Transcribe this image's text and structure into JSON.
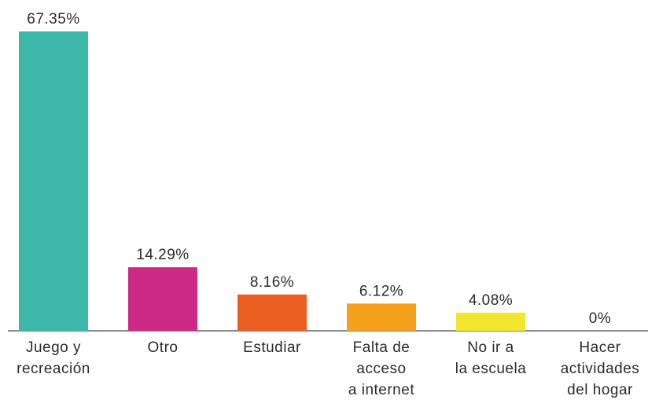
{
  "chart_data": {
    "type": "bar",
    "categories": [
      [
        "Juego y",
        "recreación"
      ],
      [
        "Otro"
      ],
      [
        "Estudiar"
      ],
      [
        "Falta de",
        "acceso",
        "a internet"
      ],
      [
        "No ir a",
        "la escuela"
      ],
      [
        "Hacer",
        "actividades",
        "del hogar"
      ]
    ],
    "values": [
      67.35,
      14.29,
      8.16,
      6.12,
      4.08,
      0
    ],
    "value_labels": [
      "67.35%",
      "14.29%",
      "8.16%",
      "6.12%",
      "4.08%",
      "0%"
    ],
    "colors": [
      "#3db8ab",
      "#cc2a86",
      "#eb5e22",
      "#f5a11c",
      "#f0e62e",
      "#9e9e9e"
    ],
    "ylim": [
      0,
      67.35
    ]
  }
}
